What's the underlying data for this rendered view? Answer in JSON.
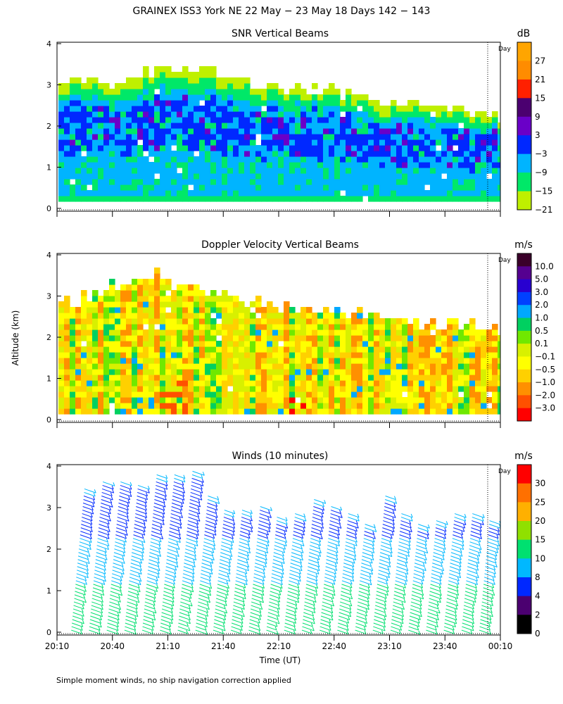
{
  "figure": {
    "title": "GRAINEX ISS3 York NE  22 May − 23 May 18 Days 142 − 143",
    "ylabel": "Altitude (km)",
    "xlabel": "Time (UT)",
    "footnote": "Simple moment winds, no ship navigation correction applied",
    "day_marker_label": "Day"
  },
  "chart_data": [
    {
      "type": "heatmap",
      "title": "SNR Vertical Beams",
      "colorbar_unit": "dB",
      "colorbar_ticks": [
        "27",
        "21",
        "15",
        "9",
        "3",
        "−3",
        "−9",
        "−15",
        "−21"
      ],
      "colors_top_to_bottom": [
        "#ffa500",
        "#ff8c00",
        "#ff2000",
        "#4b0070",
        "#6a00c8",
        "#0028ff",
        "#00b4ff",
        "#00e868",
        "#bff000"
      ],
      "yticks": [
        "0",
        "1",
        "2",
        "3",
        "4"
      ],
      "ylim": [
        0,
        4
      ],
      "echo_top_km": [
        3.1,
        3.0,
        3.15,
        3.0,
        3.05,
        3.4,
        3.2,
        3.3,
        3.25,
        3.1,
        3.0,
        2.9,
        2.85,
        2.8,
        2.85,
        2.7,
        2.6,
        2.5,
        2.45,
        2.4,
        2.35,
        2.3,
        2.25,
        2.2
      ]
    },
    {
      "type": "heatmap",
      "title": "Doppler Velocity Vertical Beams",
      "colorbar_unit": "m/s",
      "colorbar_ticks": [
        "10.0",
        "5.0",
        "3.0",
        "2.0",
        "1.0",
        "0.5",
        "0.1",
        "−0.1",
        "−0.5",
        "−1.0",
        "−2.0",
        "−3.0"
      ],
      "colors_top_to_bottom": [
        "#3a002a",
        "#550090",
        "#2800d0",
        "#0040ff",
        "#00a8ff",
        "#00d060",
        "#70e800",
        "#d8f000",
        "#ffff00",
        "#ffd000",
        "#ff9000",
        "#ff5000",
        "#ff0000"
      ],
      "yticks": [
        "0",
        "1",
        "2",
        "3",
        "4"
      ],
      "ylim": [
        0,
        4
      ],
      "echo_top_km": [
        2.9,
        2.8,
        3.1,
        3.2,
        3.3,
        3.5,
        3.2,
        3.1,
        3.0,
        2.9,
        2.8,
        2.7,
        2.65,
        2.6,
        2.55,
        2.5,
        2.45,
        2.4,
        2.3,
        2.3,
        2.25,
        2.2,
        2.2,
        2.15
      ]
    },
    {
      "type": "scatter",
      "title": "Winds (10 minutes)",
      "colorbar_unit": "m/s",
      "colorbar_ticks": [
        "30",
        "25",
        "20",
        "15",
        "10",
        "8",
        "4",
        "2",
        "0"
      ],
      "colors_top_to_bottom": [
        "#ff0000",
        "#ff7000",
        "#ffb000",
        "#90e000",
        "#00e070",
        "#00b8ff",
        "#0028ff",
        "#4b0070",
        "#000000"
      ],
      "yticks": [
        "0",
        "1",
        "2",
        "3",
        "4"
      ],
      "ylim": [
        0,
        4
      ],
      "xticks": [
        "20:10",
        "20:40",
        "21:10",
        "21:40",
        "22:10",
        "22:40",
        "23:10",
        "23:40",
        "00:10"
      ],
      "xlim_minutes_after_2010": [
        0,
        240
      ],
      "profile_times_minutes_after_2010": [
        10,
        25,
        40,
        55,
        70,
        85,
        100,
        115,
        130,
        145,
        160,
        175,
        190,
        205,
        220,
        235
      ],
      "profile_tops_km": [
        3.5,
        3.7,
        3.7,
        3.6,
        3.85,
        3.8,
        3.9,
        3.3,
        3.0,
        2.95,
        3.1,
        2.8,
        2.9,
        3.2,
        3.1,
        2.9,
        2.6,
        3.3,
        2.9,
        2.6,
        2.7,
        2.9,
        2.9,
        2.7
      ],
      "day_marker_minutes_after_2010": 230
    }
  ]
}
